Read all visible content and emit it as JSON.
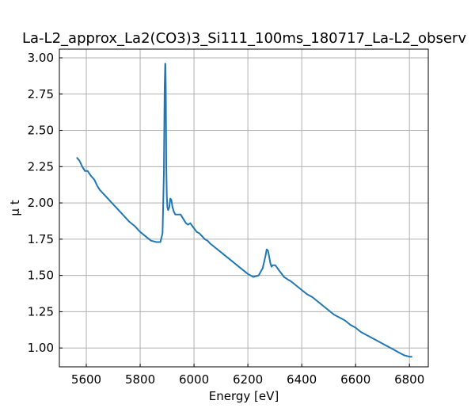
{
  "chart_data": {
    "type": "line",
    "title": "La-L2_approx_La2(CO3)3_Si111_100ms_180717_La-L2_observ",
    "xlabel": "Energy [eV]",
    "ylabel": "μ t",
    "xlim": [
      5500,
      6870
    ],
    "ylim": [
      0.87,
      3.06
    ],
    "xticks": [
      5600,
      5800,
      6000,
      6200,
      6400,
      6600,
      6800
    ],
    "yticks": [
      1.0,
      1.25,
      1.5,
      1.75,
      2.0,
      2.25,
      2.5,
      2.75,
      3.0
    ],
    "xtick_labels": [
      "5600",
      "5800",
      "6000",
      "6200",
      "6400",
      "6600",
      "6800"
    ],
    "ytick_labels": [
      "1.00",
      "1.25",
      "1.50",
      "1.75",
      "2.00",
      "2.25",
      "2.50",
      "2.75",
      "3.00"
    ],
    "grid": true,
    "series": [
      {
        "color": "#1f77b4",
        "x": [
          5566,
          5575,
          5585,
          5595,
          5605,
          5612,
          5620,
          5630,
          5640,
          5650,
          5660,
          5680,
          5700,
          5720,
          5740,
          5760,
          5780,
          5800,
          5820,
          5840,
          5860,
          5875,
          5883,
          5888,
          5891,
          5893,
          5894,
          5895,
          5896,
          5897,
          5899,
          5901,
          5904,
          5908,
          5912,
          5916,
          5920,
          5925,
          5930,
          5936,
          5942,
          5950,
          5960,
          5970,
          5978,
          5986,
          5994,
          6002,
          6010,
          6020,
          6030,
          6040,
          6050,
          6060,
          6080,
          6100,
          6120,
          6140,
          6160,
          6180,
          6200,
          6220,
          6240,
          6255,
          6265,
          6270,
          6275,
          6280,
          6284,
          6288,
          6292,
          6296,
          6302,
          6310,
          6318,
          6326,
          6334,
          6342,
          6350,
          6360,
          6380,
          6400,
          6420,
          6440,
          6460,
          6480,
          6500,
          6520,
          6540,
          6560,
          6580,
          6600,
          6620,
          6640,
          6660,
          6680,
          6700,
          6720,
          6740,
          6760,
          6780,
          6800,
          6808
        ],
        "y": [
          2.31,
          2.29,
          2.25,
          2.22,
          2.22,
          2.2,
          2.18,
          2.16,
          2.12,
          2.09,
          2.07,
          2.03,
          1.99,
          1.95,
          1.91,
          1.87,
          1.84,
          1.8,
          1.77,
          1.74,
          1.73,
          1.73,
          1.79,
          2.2,
          2.8,
          2.96,
          2.95,
          2.8,
          2.55,
          2.25,
          2.05,
          1.97,
          1.95,
          1.97,
          2.03,
          2.02,
          1.97,
          1.94,
          1.92,
          1.92,
          1.92,
          1.92,
          1.89,
          1.86,
          1.85,
          1.86,
          1.84,
          1.82,
          1.8,
          1.79,
          1.77,
          1.75,
          1.74,
          1.72,
          1.69,
          1.66,
          1.63,
          1.6,
          1.57,
          1.54,
          1.51,
          1.49,
          1.5,
          1.55,
          1.63,
          1.68,
          1.67,
          1.62,
          1.58,
          1.56,
          1.57,
          1.57,
          1.57,
          1.55,
          1.53,
          1.51,
          1.49,
          1.48,
          1.47,
          1.46,
          1.43,
          1.4,
          1.37,
          1.35,
          1.32,
          1.29,
          1.26,
          1.23,
          1.21,
          1.19,
          1.16,
          1.14,
          1.11,
          1.09,
          1.07,
          1.05,
          1.03,
          1.01,
          0.99,
          0.97,
          0.95,
          0.94,
          0.94
        ]
      }
    ]
  }
}
